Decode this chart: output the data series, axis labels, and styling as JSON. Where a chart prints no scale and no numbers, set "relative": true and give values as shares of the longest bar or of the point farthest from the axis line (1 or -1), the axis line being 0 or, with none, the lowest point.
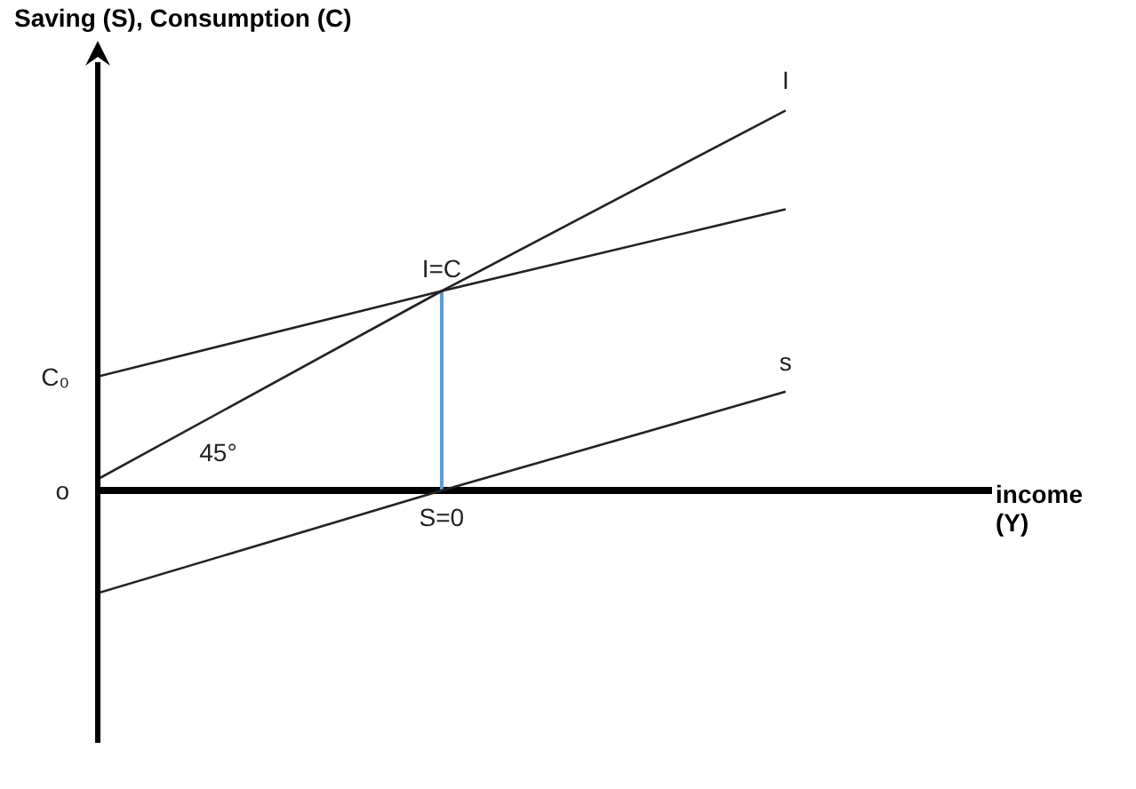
{
  "chart_data": {
    "type": "line",
    "relative": true,
    "ylabel": "Saving (S), Consumption (C)",
    "xlabel": "income (Y)",
    "categories": [
      null,
      null,
      null
    ],
    "series": [
      {
        "name": "I",
        "color": "#222222",
        "values": [
          0.03,
          0.525,
          1
        ]
      },
      {
        "color": "#222222",
        "values": [
          0.3,
          0.525,
          0.74
        ]
      },
      {
        "name": "s",
        "color": "#222222",
        "values": [
          -0.27,
          0,
          0.26
        ]
      }
    ],
    "ref_lines": [
      {
        "axis": "x",
        "color": "#5b9bd5"
      }
    ],
    "annotations": [
      "I=C",
      "S=0",
      "45°",
      "C₀",
      "o"
    ],
    "grid": false,
    "legend": false,
    "marker": "none",
    "line_style": "solid"
  }
}
